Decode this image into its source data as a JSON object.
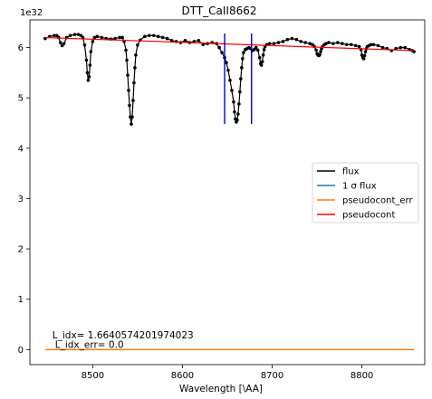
{
  "chart_data": {
    "type": "line",
    "title": "DTT_CaII8662",
    "xlabel": "Wavelength [\\AA]",
    "ylabel": "",
    "y_offset_label": "1e32",
    "xlim": [
      8430,
      8870
    ],
    "ylim": [
      -0.3,
      6.55
    ],
    "x_ticks": [
      8500,
      8600,
      8700,
      8800
    ],
    "y_ticks": [
      0,
      1,
      2,
      3,
      4,
      5,
      6
    ],
    "legend_position": "center-right",
    "legend": [
      {
        "label": "flux",
        "color": "#000000"
      },
      {
        "label": "1 σ flux",
        "color": "#1f77b4"
      },
      {
        "label": "pseudocont_err",
        "color": "#ff7f0e"
      },
      {
        "label": "pseudocont",
        "color": "#ff0000"
      }
    ],
    "annotations": [
      {
        "text": "L_idx= 1.6640574201974023",
        "x": 8455,
        "y": 0.22
      },
      {
        "text": "L_idx_err= 0.0",
        "x": 8458,
        "y": 0.03
      }
    ],
    "vlines": [
      {
        "x": 8647,
        "ymin": 4.48,
        "ymax": 6.28,
        "color": "#0000cc"
      },
      {
        "x": 8677,
        "ymin": 4.48,
        "ymax": 6.28,
        "color": "#0000cc"
      }
    ],
    "series": [
      {
        "name": "flux",
        "color": "#000000",
        "x": [
          8447,
          8452,
          8457,
          8460,
          8462,
          8464,
          8466,
          8468,
          8471,
          8475,
          8480,
          8484,
          8487,
          8489,
          8491,
          8493,
          8494,
          8495,
          8496,
          8497,
          8498,
          8500,
          8502,
          8505,
          8510,
          8515,
          8520,
          8525,
          8530,
          8533,
          8535,
          8537,
          8538,
          8539,
          8540,
          8541,
          8542,
          8543,
          8544,
          8545,
          8546,
          8547,
          8548,
          8550,
          8553,
          8558,
          8563,
          8568,
          8573,
          8578,
          8583,
          8588,
          8593,
          8598,
          8603,
          8608,
          8613,
          8618,
          8623,
          8628,
          8633,
          8638,
          8641,
          8644,
          8647,
          8649,
          8651,
          8653,
          8655,
          8657,
          8658,
          8659,
          8660,
          8661,
          8662,
          8663,
          8664,
          8665,
          8666,
          8667,
          8668,
          8670,
          8672,
          8674,
          8676,
          8678,
          8680,
          8682,
          8684,
          8686,
          8687,
          8688,
          8689,
          8690,
          8691,
          8692,
          8694,
          8697,
          8702,
          8707,
          8712,
          8717,
          8722,
          8727,
          8732,
          8737,
          8742,
          8745,
          8747,
          8749,
          8750,
          8751,
          8752,
          8753,
          8754,
          8755,
          8756,
          8758,
          8760,
          8763,
          8768,
          8773,
          8778,
          8783,
          8788,
          8793,
          8797,
          8799,
          8800,
          8801,
          8802,
          8803,
          8804,
          8805,
          8806,
          8808,
          8810,
          8813,
          8818,
          8823,
          8828,
          8833,
          8838,
          8843,
          8848,
          8853,
          8856,
          8858
        ],
        "values": [
          6.18,
          6.22,
          6.24,
          6.24,
          6.2,
          6.1,
          6.04,
          6.08,
          6.2,
          6.24,
          6.26,
          6.26,
          6.24,
          6.2,
          6.05,
          5.75,
          5.5,
          5.35,
          5.42,
          5.65,
          5.92,
          6.12,
          6.2,
          6.22,
          6.2,
          6.18,
          6.17,
          6.18,
          6.2,
          6.2,
          6.12,
          5.95,
          5.75,
          5.45,
          5.15,
          4.85,
          4.62,
          4.48,
          4.62,
          4.95,
          5.3,
          5.6,
          5.85,
          6.05,
          6.15,
          6.22,
          6.24,
          6.24,
          6.22,
          6.2,
          6.18,
          6.14,
          6.12,
          6.1,
          6.14,
          6.1,
          6.12,
          6.14,
          6.06,
          6.08,
          6.1,
          6.08,
          6.0,
          5.9,
          5.8,
          5.7,
          5.55,
          5.35,
          5.15,
          4.92,
          4.72,
          4.58,
          4.52,
          4.56,
          4.68,
          4.88,
          5.12,
          5.38,
          5.6,
          5.78,
          5.9,
          5.96,
          5.98,
          6.0,
          5.98,
          5.94,
          5.96,
          6.0,
          5.95,
          5.8,
          5.68,
          5.65,
          5.72,
          5.85,
          5.96,
          6.02,
          6.06,
          6.08,
          6.08,
          6.1,
          6.12,
          6.16,
          6.18,
          6.16,
          6.12,
          6.1,
          6.08,
          6.06,
          6.02,
          5.95,
          5.88,
          5.85,
          5.84,
          5.86,
          5.92,
          5.98,
          6.02,
          6.06,
          6.08,
          6.1,
          6.08,
          6.1,
          6.08,
          6.06,
          6.06,
          6.04,
          6.02,
          5.96,
          5.85,
          5.8,
          5.78,
          5.84,
          5.92,
          5.98,
          6.02,
          6.04,
          6.06,
          6.06,
          6.04,
          6.0,
          5.98,
          5.94,
          5.98,
          6.0,
          6.0,
          5.96,
          5.94,
          5.92
        ]
      },
      {
        "name": "pseudocont",
        "color": "#ff0000",
        "x": [
          8447,
          8858
        ],
        "values": [
          6.2,
          5.94
        ]
      },
      {
        "name": "pseudocont_err",
        "color": "#ff7f0e",
        "x": [
          8447,
          8858
        ],
        "values": [
          0.0,
          0.0
        ]
      }
    ]
  }
}
